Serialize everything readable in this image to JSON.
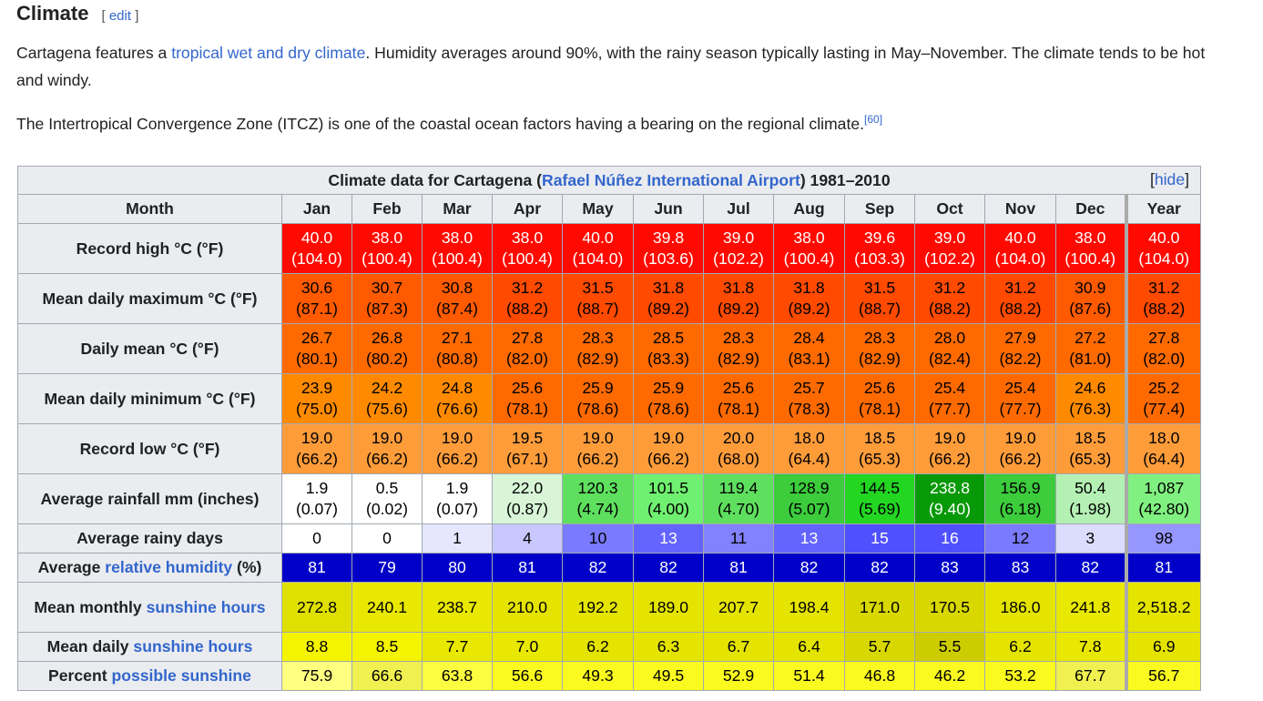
{
  "heading": {
    "title": "Climate",
    "edit_open": "[",
    "edit_label": "edit",
    "edit_close": "]"
  },
  "intro": {
    "p1_before": "Cartagena features a ",
    "p1_link": "tropical wet and dry climate",
    "p1_after": ". Humidity averages around 90%, with the rainy season typically lasting in May–November. The climate tends to be hot and windy.",
    "p2_text": "The Intertropical Convergence Zone (ITCZ) is one of the coastal ocean factors having a bearing on the regional climate.",
    "p2_ref": "[60]"
  },
  "table": {
    "caption_before": "Climate data for Cartagena (",
    "caption_link": "Rafael Núñez International Airport",
    "caption_after": ") 1981–2010",
    "hide_open": "[",
    "hide_label": "hide",
    "hide_close": "]",
    "month_header": "Month",
    "months": [
      "Jan",
      "Feb",
      "Mar",
      "Apr",
      "May",
      "Jun",
      "Jul",
      "Aug",
      "Sep",
      "Oct",
      "Nov",
      "Dec",
      "Year"
    ],
    "rows": [
      {
        "label": "Record high °C (°F)",
        "c": [
          "40.0",
          "38.0",
          "38.0",
          "38.0",
          "40.0",
          "39.8",
          "39.0",
          "38.0",
          "39.6",
          "39.0",
          "40.0",
          "38.0",
          "40.0"
        ],
        "f": [
          "(104.0)",
          "(100.4)",
          "(100.4)",
          "(100.4)",
          "(104.0)",
          "(103.6)",
          "(102.2)",
          "(100.4)",
          "(103.3)",
          "(102.2)",
          "(104.0)",
          "(100.4)",
          "(104.0)"
        ]
      },
      {
        "label": "Mean daily maximum °C (°F)",
        "c": [
          "30.6",
          "30.7",
          "30.8",
          "31.2",
          "31.5",
          "31.8",
          "31.8",
          "31.8",
          "31.5",
          "31.2",
          "31.2",
          "30.9",
          "31.2"
        ],
        "f": [
          "(87.1)",
          "(87.3)",
          "(87.4)",
          "(88.2)",
          "(88.7)",
          "(89.2)",
          "(89.2)",
          "(89.2)",
          "(88.7)",
          "(88.2)",
          "(88.2)",
          "(87.6)",
          "(88.2)"
        ]
      },
      {
        "label": "Daily mean °C (°F)",
        "c": [
          "26.7",
          "26.8",
          "27.1",
          "27.8",
          "28.3",
          "28.5",
          "28.3",
          "28.4",
          "28.3",
          "28.0",
          "27.9",
          "27.2",
          "27.8"
        ],
        "f": [
          "(80.1)",
          "(80.2)",
          "(80.8)",
          "(82.0)",
          "(82.9)",
          "(83.3)",
          "(82.9)",
          "(83.1)",
          "(82.9)",
          "(82.4)",
          "(82.2)",
          "(81.0)",
          "(82.0)"
        ]
      },
      {
        "label": "Mean daily minimum °C (°F)",
        "c": [
          "23.9",
          "24.2",
          "24.8",
          "25.6",
          "25.9",
          "25.9",
          "25.6",
          "25.7",
          "25.6",
          "25.4",
          "25.4",
          "24.6",
          "25.2"
        ],
        "f": [
          "(75.0)",
          "(75.6)",
          "(76.6)",
          "(78.1)",
          "(78.6)",
          "(78.6)",
          "(78.1)",
          "(78.3)",
          "(78.1)",
          "(77.7)",
          "(77.7)",
          "(76.3)",
          "(77.4)"
        ]
      },
      {
        "label": "Record low °C (°F)",
        "c": [
          "19.0",
          "19.0",
          "19.0",
          "19.5",
          "19.0",
          "19.0",
          "20.0",
          "18.0",
          "18.5",
          "19.0",
          "19.0",
          "18.5",
          "18.0"
        ],
        "f": [
          "(66.2)",
          "(66.2)",
          "(66.2)",
          "(67.1)",
          "(66.2)",
          "(66.2)",
          "(68.0)",
          "(64.4)",
          "(65.3)",
          "(66.2)",
          "(66.2)",
          "(65.3)",
          "(64.4)"
        ]
      },
      {
        "label": "Average rainfall mm (inches)",
        "c": [
          "1.9",
          "0.5",
          "1.9",
          "22.0",
          "120.3",
          "101.5",
          "119.4",
          "128.9",
          "144.5",
          "238.8",
          "156.9",
          "50.4",
          "1,087"
        ],
        "f": [
          "(0.07)",
          "(0.02)",
          "(0.07)",
          "(0.87)",
          "(4.74)",
          "(4.00)",
          "(4.70)",
          "(5.07)",
          "(5.69)",
          "(9.40)",
          "(6.18)",
          "(1.98)",
          "(42.80)"
        ]
      }
    ],
    "rainy_days": {
      "label": "Average rainy days",
      "v": [
        "0",
        "0",
        "1",
        "4",
        "10",
        "13",
        "11",
        "13",
        "15",
        "16",
        "12",
        "3",
        "98"
      ]
    },
    "humidity": {
      "label_before": "Average ",
      "label_link": "relative humidity",
      "label_after": " (%)",
      "v": [
        "81",
        "79",
        "80",
        "81",
        "82",
        "82",
        "81",
        "82",
        "82",
        "83",
        "83",
        "82",
        "81"
      ]
    },
    "sun_monthly": {
      "label_before": "Mean monthly ",
      "label_link": "sunshine hours",
      "v": [
        "272.8",
        "240.1",
        "238.7",
        "210.0",
        "192.2",
        "189.0",
        "207.7",
        "198.4",
        "171.0",
        "170.5",
        "186.0",
        "241.8",
        "2,518.2"
      ]
    },
    "sun_daily": {
      "label_before": "Mean daily ",
      "label_link": "sunshine hours",
      "v": [
        "8.8",
        "8.5",
        "7.7",
        "7.0",
        "6.2",
        "6.3",
        "6.7",
        "6.4",
        "5.7",
        "5.5",
        "6.2",
        "7.8",
        "6.9"
      ]
    },
    "sun_percent": {
      "label_before": "Percent ",
      "label_link": "possible sunshine",
      "v": [
        "75.9",
        "66.6",
        "63.8",
        "56.6",
        "49.3",
        "49.5",
        "52.9",
        "51.4",
        "46.8",
        "46.2",
        "53.2",
        "67.7",
        "56.7"
      ]
    }
  },
  "colors": {
    "link": "#3366cc",
    "header_bg": "#eaecf0",
    "border": "#a2a9b1"
  }
}
